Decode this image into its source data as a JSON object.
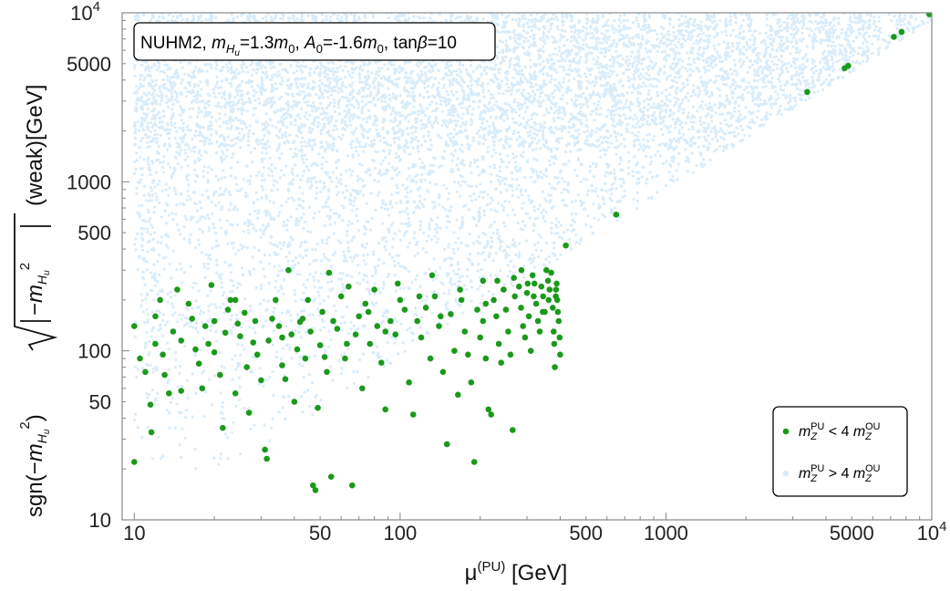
{
  "chart_data": {
    "type": "scatter",
    "x_scale": "log",
    "y_scale": "log",
    "xlim": [
      9,
      10000
    ],
    "ylim": [
      10,
      10000
    ],
    "x_ticks": [
      {
        "value": 10,
        "label": "10"
      },
      {
        "value": 50,
        "label": "50"
      },
      {
        "value": 100,
        "label": "100"
      },
      {
        "value": 500,
        "label": "500"
      },
      {
        "value": 1000,
        "label": "1000"
      },
      {
        "value": 5000,
        "label": "5000"
      },
      {
        "value": 10000,
        "label": "10",
        "sup": "4"
      }
    ],
    "y_ticks": [
      {
        "value": 10,
        "label": "10"
      },
      {
        "value": 50,
        "label": "50"
      },
      {
        "value": 100,
        "label": "100"
      },
      {
        "value": 500,
        "label": "500"
      },
      {
        "value": 1000,
        "label": "1000"
      },
      {
        "value": 5000,
        "label": "5000"
      },
      {
        "value": 10000,
        "label": "10",
        "sup": "4"
      }
    ],
    "annotation": {
      "parts": [
        {
          "t": "NUHM2, "
        },
        {
          "t": "m",
          "i": true
        },
        {
          "t": "H",
          "i": true,
          "sub": true,
          "small": true
        },
        {
          "t": "u",
          "i": true,
          "sub2": true,
          "small": true
        },
        {
          "t": "=1.3"
        },
        {
          "t": "m",
          "i": true
        },
        {
          "t": "0",
          "sub": true,
          "small": true
        },
        {
          "t": ", "
        },
        {
          "t": "A",
          "i": true
        },
        {
          "t": "0",
          "sub": true,
          "small": true
        },
        {
          "t": "=-1.6"
        },
        {
          "t": "m",
          "i": true
        },
        {
          "t": "0",
          "sub": true,
          "small": true
        },
        {
          "t": ", tan"
        },
        {
          "t": "β",
          "i": true
        },
        {
          "t": "=10"
        }
      ]
    },
    "xlabel": {
      "main": "μ",
      "sup": "(PU)",
      "rest": " [GeV]"
    },
    "ylabel": {
      "parts": [
        "sgn(−",
        "m",
        "H",
        "u",
        "2",
        ")",
        "−",
        "m",
        "H",
        "u",
        "2",
        "(weak)[GeV]"
      ]
    },
    "legend": {
      "placement": "bottom-right",
      "entries": [
        {
          "series": 0,
          "m": "m",
          "z": "Z",
          "pu": "PU",
          "op": " < 4 ",
          "ou": "OU"
        },
        {
          "series": 1,
          "m": "m",
          "z": "Z",
          "pu": "PU",
          "op": " > 4 ",
          "ou": "OU"
        }
      ]
    },
    "series": [
      {
        "color": "#1a9a1a",
        "marker": "circle",
        "points": [
          [
            10,
            22
          ],
          [
            10,
            140
          ],
          [
            10.5,
            90
          ],
          [
            11,
            75
          ],
          [
            11.5,
            48
          ],
          [
            11.6,
            33
          ],
          [
            12,
            110
          ],
          [
            12,
            160
          ],
          [
            12.5,
            200
          ],
          [
            12.8,
            95
          ],
          [
            13,
            72
          ],
          [
            13.5,
            56
          ],
          [
            14,
            130
          ],
          [
            14.5,
            230
          ],
          [
            15,
            115
          ],
          [
            15,
            58
          ],
          [
            16,
            190
          ],
          [
            16.5,
            155
          ],
          [
            17,
            102
          ],
          [
            17.5,
            84
          ],
          [
            18,
            60
          ],
          [
            18.5,
            140
          ],
          [
            19,
            110
          ],
          [
            19.5,
            245
          ],
          [
            20,
            150
          ],
          [
            20,
            98
          ],
          [
            21,
            72
          ],
          [
            21.5,
            35
          ],
          [
            22,
            128
          ],
          [
            22.5,
            175
          ],
          [
            23,
            200
          ],
          [
            24,
            56
          ],
          [
            24.5,
            145
          ],
          [
            25,
            122
          ],
          [
            26,
            168
          ],
          [
            26.5,
            80
          ],
          [
            27,
            43
          ],
          [
            28,
            112
          ],
          [
            28.5,
            150
          ],
          [
            29,
            95
          ],
          [
            30,
            67
          ],
          [
            31,
            26
          ],
          [
            31.5,
            23
          ],
          [
            32,
            115
          ],
          [
            33,
            155
          ],
          [
            34,
            200
          ],
          [
            35,
            140
          ],
          [
            36,
            82
          ],
          [
            37,
            68
          ],
          [
            38,
            300
          ],
          [
            39,
            125
          ],
          [
            40,
            50
          ],
          [
            41,
            102
          ],
          [
            42,
            148
          ],
          [
            43,
            155
          ],
          [
            44,
            90
          ],
          [
            45,
            200
          ],
          [
            46,
            130
          ],
          [
            47,
            16
          ],
          [
            48,
            15
          ],
          [
            49,
            46
          ],
          [
            50,
            108
          ],
          [
            51,
            170
          ],
          [
            52,
            92
          ],
          [
            53,
            75
          ],
          [
            54,
            290
          ],
          [
            55,
            18
          ],
          [
            56,
            150
          ],
          [
            58,
            135
          ],
          [
            60,
            210
          ],
          [
            62,
            90
          ],
          [
            64,
            240
          ],
          [
            66,
            16
          ],
          [
            68,
            125
          ],
          [
            70,
            160
          ],
          [
            72,
            60
          ],
          [
            74,
            190
          ],
          [
            77,
            110
          ],
          [
            80,
            230
          ],
          [
            82,
            140
          ],
          [
            85,
            85
          ],
          [
            88,
            45
          ],
          [
            92,
            150
          ],
          [
            96,
            125
          ],
          [
            100,
            200
          ],
          [
            104,
            175
          ],
          [
            108,
            65
          ],
          [
            112,
            42
          ],
          [
            116,
            150
          ],
          [
            120,
            120
          ],
          [
            125,
            180
          ],
          [
            130,
            90
          ],
          [
            135,
            210
          ],
          [
            140,
            140
          ],
          [
            145,
            75
          ],
          [
            150,
            28
          ],
          [
            155,
            165
          ],
          [
            160,
            100
          ],
          [
            165,
            55
          ],
          [
            170,
            200
          ],
          [
            175,
            130
          ],
          [
            180,
            95
          ],
          [
            185,
            65
          ],
          [
            190,
            22
          ],
          [
            195,
            175
          ],
          [
            200,
            120
          ],
          [
            205,
            150
          ],
          [
            210,
            90
          ],
          [
            215,
            45
          ],
          [
            220,
            42
          ],
          [
            225,
            200
          ],
          [
            230,
            160
          ],
          [
            235,
            110
          ],
          [
            240,
            85
          ],
          [
            245,
            230
          ],
          [
            250,
            175
          ],
          [
            255,
            130
          ],
          [
            260,
            95
          ],
          [
            265,
            34
          ],
          [
            270,
            210
          ],
          [
            280,
            240
          ],
          [
            285,
            180
          ],
          [
            290,
            140
          ],
          [
            295,
            120
          ],
          [
            300,
            220
          ],
          [
            305,
            160
          ],
          [
            310,
            100
          ],
          [
            315,
            280
          ],
          [
            320,
            250
          ],
          [
            325,
            190
          ],
          [
            330,
            150
          ],
          [
            335,
            130
          ],
          [
            340,
            240
          ],
          [
            345,
            210
          ],
          [
            350,
            170
          ],
          [
            355,
            300
          ],
          [
            360,
            260
          ],
          [
            365,
            230
          ],
          [
            370,
            290
          ],
          [
            375,
            180
          ],
          [
            378,
            130
          ],
          [
            380,
            110
          ],
          [
            382,
            80
          ],
          [
            385,
            210
          ],
          [
            388,
            250
          ],
          [
            390,
            200
          ],
          [
            392,
            170
          ],
          [
            395,
            150
          ],
          [
            398,
            120
          ],
          [
            400,
            95
          ],
          [
            420,
            420
          ],
          [
            650,
            640
          ],
          [
            3400,
            3400
          ],
          [
            4700,
            4700
          ],
          [
            4850,
            4850
          ],
          [
            7200,
            7200
          ],
          [
            7700,
            7700
          ],
          [
            9800,
            9800
          ],
          [
            9900,
            9900
          ],
          [
            24,
            200
          ],
          [
            36,
            120
          ],
          [
            63,
            110
          ],
          [
            88,
            130
          ],
          [
            118,
            210
          ],
          [
            142,
            160
          ],
          [
            168,
            230
          ],
          [
            210,
            190
          ],
          [
            232,
            260
          ],
          [
            268,
            270
          ],
          [
            286,
            300
          ],
          [
            302,
            250
          ],
          [
            318,
            210
          ],
          [
            344,
            170
          ],
          [
            362,
            200
          ],
          [
            386,
            230
          ],
          [
            76,
            170
          ],
          [
            98,
            250
          ],
          [
            132,
            280
          ],
          [
            205,
            260
          ]
        ]
      },
      {
        "color": "#d8ecfb",
        "marker": "circle",
        "points": []
      }
    ]
  }
}
